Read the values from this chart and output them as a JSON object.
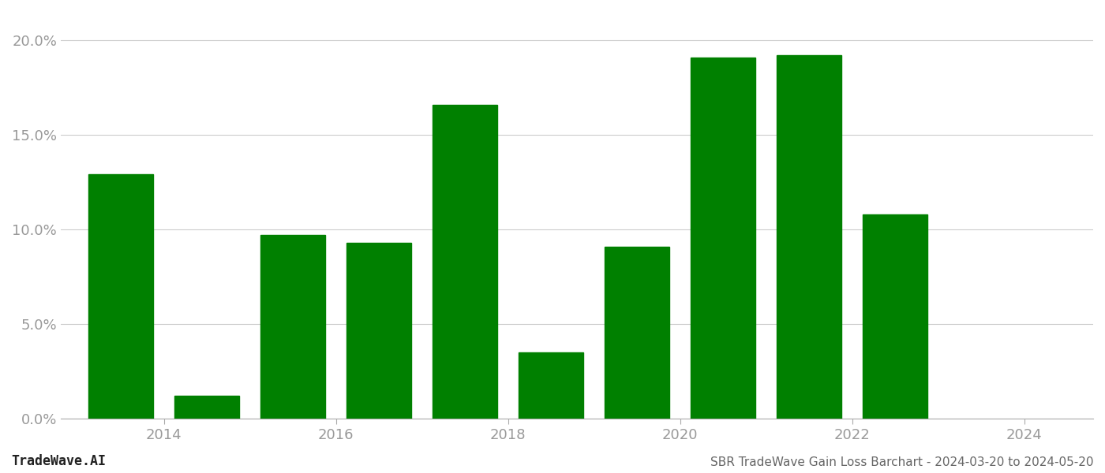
{
  "years": [
    2013.5,
    2014.5,
    2015.5,
    2016.5,
    2017.5,
    2018.5,
    2019.5,
    2020.5,
    2021.5,
    2022.5
  ],
  "values": [
    0.129,
    0.012,
    0.097,
    0.093,
    0.166,
    0.035,
    0.091,
    0.191,
    0.192,
    0.108
  ],
  "bar_color": "#008000",
  "ylim": [
    0.0,
    0.215
  ],
  "yticks": [
    0.0,
    0.05,
    0.1,
    0.15,
    0.2
  ],
  "ytick_labels": [
    "0.0%",
    "5.0%",
    "10.0%",
    "15.0%",
    "20.0%"
  ],
  "xtick_positions": [
    2014,
    2016,
    2018,
    2020,
    2022,
    2024
  ],
  "xtick_labels": [
    "2014",
    "2016",
    "2018",
    "2020",
    "2022",
    "2024"
  ],
  "xlim": [
    2012.8,
    2024.8
  ],
  "footer_left": "TradeWave.AI",
  "footer_right": "SBR TradeWave Gain Loss Barchart - 2024-03-20 to 2024-05-20",
  "background_color": "#ffffff",
  "grid_color": "#cccccc",
  "tick_color": "#999999",
  "bar_width": 0.75
}
